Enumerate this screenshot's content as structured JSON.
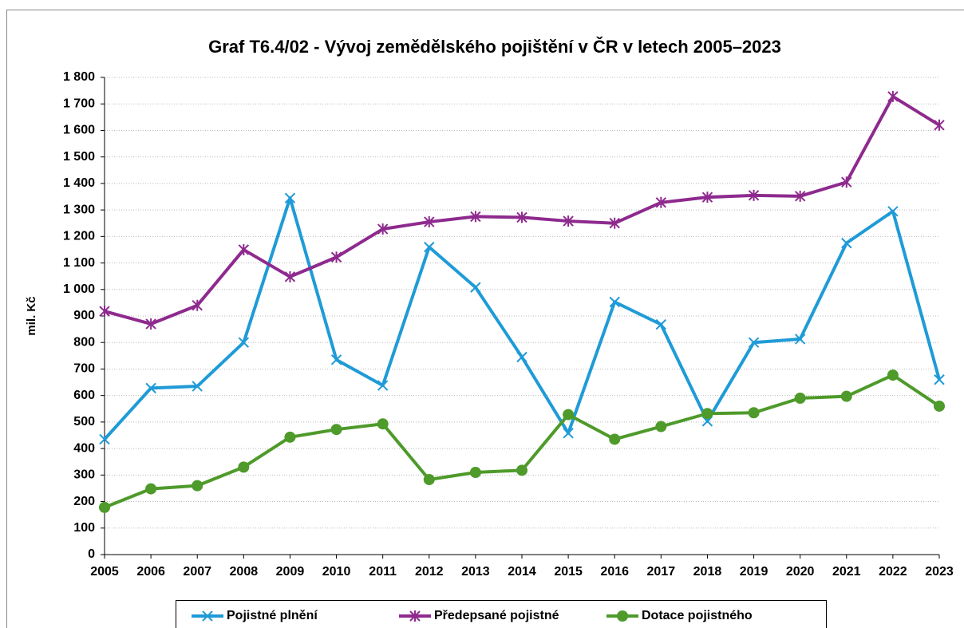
{
  "chart_data": {
    "type": "line",
    "title": "Graf T6.4/02 - Vývoj zemědělského pojištění v ČR v letech 2005–2023",
    "y_label": "mil. Kč",
    "categories": [
      "2005",
      "2006",
      "2007",
      "2008",
      "2009",
      "2010",
      "2011",
      "2012",
      "2013",
      "2014",
      "2015",
      "2016",
      "2017",
      "2018",
      "2019",
      "2020",
      "2021",
      "2022",
      "2023"
    ],
    "series": [
      {
        "name": "Pojistné plnění",
        "color": "#1f9bd7",
        "marker": "x",
        "values": [
          435,
          628,
          635,
          800,
          1345,
          735,
          638,
          1160,
          1008,
          745,
          458,
          953,
          868,
          503,
          800,
          813,
          1175,
          1295,
          660
        ]
      },
      {
        "name": "Předepsané pojistné",
        "color": "#8e2a8e",
        "marker": "star",
        "values": [
          918,
          870,
          940,
          1150,
          1048,
          1122,
          1228,
          1255,
          1275,
          1272,
          1258,
          1250,
          1328,
          1348,
          1355,
          1352,
          1405,
          1728,
          1620
        ]
      },
      {
        "name": "Dotace pojistného",
        "color": "#4e9a2a",
        "marker": "circle",
        "values": [
          178,
          248,
          260,
          330,
          443,
          472,
          493,
          283,
          310,
          318,
          528,
          435,
          483,
          532,
          535,
          590,
          597,
          677,
          560
        ]
      }
    ],
    "ylim": [
      0,
      1800
    ],
    "yticks": [
      0,
      100,
      200,
      300,
      400,
      500,
      600,
      700,
      800,
      900,
      {
        "value": 1000,
        "label": "1 000"
      },
      {
        "value": 1100,
        "label": "1 100"
      },
      {
        "value": 1200,
        "label": "1 200"
      },
      {
        "value": 1300,
        "label": "1 300"
      },
      {
        "value": 1400,
        "label": "1 400"
      },
      {
        "value": 1500,
        "label": "1 500"
      },
      {
        "value": 1600,
        "label": "1 600"
      },
      {
        "value": 1700,
        "label": "1 700"
      },
      {
        "value": 1800,
        "label": "1 800"
      }
    ],
    "grid": true,
    "legend": "bottom"
  }
}
